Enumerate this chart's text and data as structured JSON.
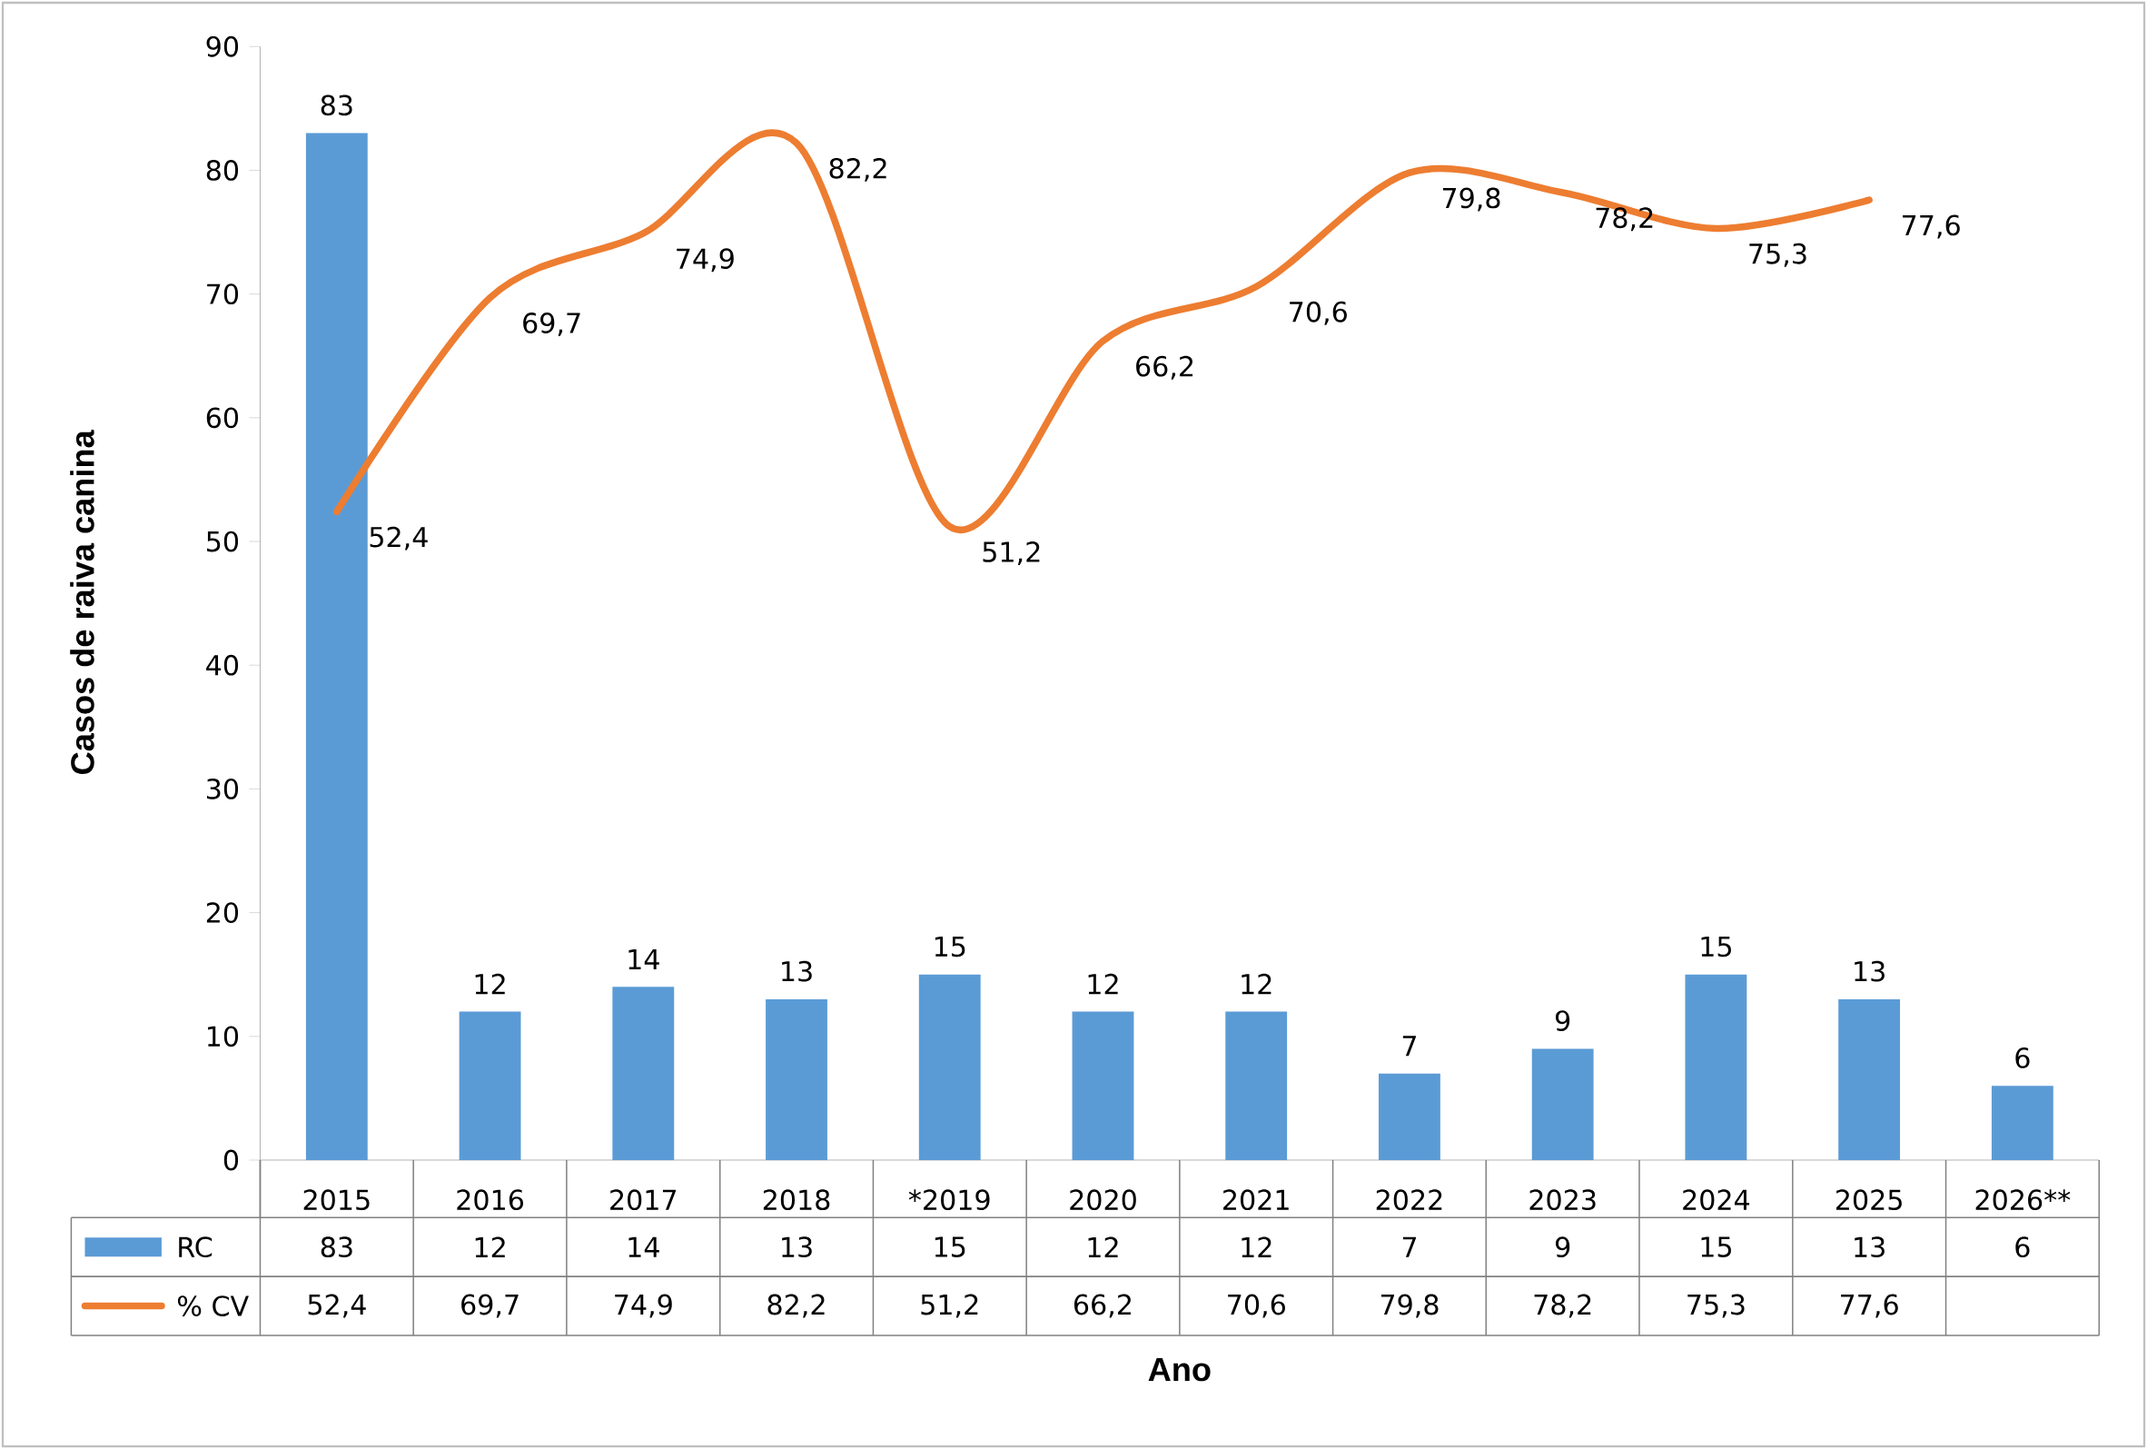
{
  "chart_data": {
    "type": "bar",
    "xlabel": "Ano",
    "ylabel": "Casos de raiva canina",
    "categories": [
      "2015",
      "2016",
      "2017",
      "2018",
      "*2019",
      "2020",
      "2021",
      "2022",
      "2023",
      "2024",
      "2025",
      "2026**"
    ],
    "series": [
      {
        "name": "RC",
        "color": "#5b9bd5",
        "values": [
          83,
          12,
          14,
          13,
          15,
          12,
          12,
          7,
          9,
          15,
          13,
          6
        ],
        "value_labels": [
          "83",
          "12",
          "14",
          "13",
          "15",
          "12",
          "12",
          "7",
          "9",
          "15",
          "13",
          "6"
        ]
      },
      {
        "name": "% CV",
        "type": "line",
        "color": "#ed7d31",
        "values": [
          52.4,
          69.7,
          74.9,
          82.2,
          51.2,
          66.2,
          70.6,
          79.8,
          78.2,
          75.3,
          77.6,
          null
        ],
        "value_labels": [
          "52,4",
          "69,7",
          "74,9",
          "82,2",
          "51,2",
          "66,2",
          "70,6",
          "79,8",
          "78,2",
          "75,3",
          "77,6",
          null
        ]
      }
    ],
    "ylim": [
      0,
      90
    ],
    "yticks": [
      0,
      10,
      20,
      30,
      40,
      50,
      60,
      70,
      80,
      90
    ],
    "data_labels": true,
    "legend": "bottom",
    "marker": "none",
    "line_style": "solid"
  }
}
